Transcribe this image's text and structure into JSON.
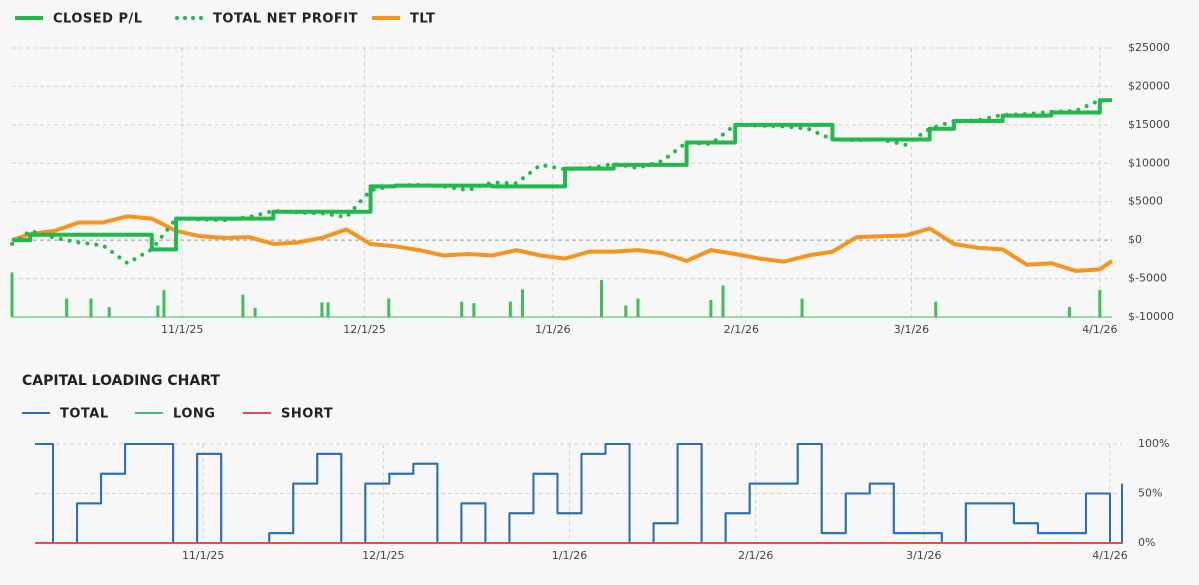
{
  "chart_data": [
    {
      "type": "line",
      "x": [
        "10/4/25",
        "10/7/25",
        "10/11/25",
        "10/15/25",
        "10/19/25",
        "10/23/25",
        "10/27/25",
        "10/31/25",
        "11/4/25",
        "11/8/25",
        "11/12/25",
        "11/16/25",
        "11/20/25",
        "11/24/25",
        "11/28/25",
        "12/2/25",
        "12/6/25",
        "12/10/25",
        "12/14/25",
        "12/18/25",
        "12/22/25",
        "12/26/25",
        "12/30/25",
        "1/3/26",
        "1/7/26",
        "1/11/26",
        "1/15/26",
        "1/19/26",
        "1/23/26",
        "1/27/26",
        "1/31/26",
        "2/4/26",
        "2/8/26",
        "2/12/26",
        "2/16/26",
        "2/20/26",
        "2/24/26",
        "2/28/26",
        "3/4/26",
        "3/8/26",
        "3/12/26",
        "3/16/26",
        "3/20/26",
        "3/24/26",
        "3/28/26",
        "4/1/26",
        "4/3/26"
      ],
      "series": [
        {
          "name": "CLOSED P/L",
          "color": "#22b84c",
          "style": "step",
          "values": [
            0,
            700,
            700,
            700,
            700,
            700,
            -1200,
            2800,
            2800,
            2800,
            2800,
            3700,
            3700,
            3700,
            3700,
            7000,
            7100,
            7100,
            7100,
            7100,
            7000,
            7000,
            7000,
            9300,
            9300,
            9800,
            9800,
            9800,
            12700,
            12700,
            15000,
            15000,
            15000,
            15000,
            13100,
            13100,
            13100,
            13100,
            14500,
            15500,
            15500,
            16200,
            16200,
            16600,
            16600,
            18200,
            18200
          ]
        },
        {
          "name": "TOTAL NET PROFIT",
          "color": "#22b84c",
          "style": "dotted",
          "values": [
            -500,
            1200,
            300,
            -300,
            -700,
            -3000,
            -1200,
            2800,
            2700,
            2600,
            3000,
            3800,
            3600,
            3500,
            3000,
            6500,
            7100,
            7200,
            7000,
            6500,
            7500,
            7400,
            9800,
            9200,
            9400,
            9900,
            9400,
            10300,
            12700,
            12500,
            15000,
            14900,
            14800,
            14500,
            13100,
            13000,
            13100,
            12400,
            14500,
            15500,
            15600,
            16300,
            16400,
            16700,
            16800,
            18200,
            18100
          ]
        },
        {
          "name": "TLT",
          "color": "#f7941d",
          "style": "line",
          "values": [
            0,
            800,
            1200,
            2300,
            2300,
            3100,
            2800,
            1200,
            500,
            300,
            400,
            -500,
            -300,
            300,
            1400,
            -500,
            -800,
            -1300,
            -2000,
            -1800,
            -2000,
            -1300,
            -2000,
            -2400,
            -1500,
            -1500,
            -1300,
            -1700,
            -2700,
            -1300,
            -1800,
            -2400,
            -2800,
            -2000,
            -1500,
            400,
            500,
            600,
            1500,
            -500,
            -1000,
            -1200,
            -3200,
            -3000,
            -4000,
            -3800,
            -2700
          ]
        }
      ],
      "bars": {
        "color": "#3cc05a",
        "x": [
          "10/4/25",
          "10/13/25",
          "10/17/25",
          "10/20/25",
          "10/28/25",
          "10/29/25",
          "11/11/25",
          "11/13/25",
          "11/24/25",
          "11/25/25",
          "12/5/25",
          "12/17/25",
          "12/19/25",
          "12/25/25",
          "12/27/25",
          "1/9/26",
          "1/13/26",
          "1/15/26",
          "1/27/26",
          "1/29/26",
          "2/11/26",
          "3/5/26",
          "3/27/26",
          "4/1/26"
        ],
        "values": [
          -4200,
          -7600,
          -7600,
          -8700,
          -8500,
          -6500,
          -7100,
          -8800,
          -8100,
          -8100,
          -7600,
          -8000,
          -8200,
          -8000,
          -6400,
          -5200,
          -8500,
          -7600,
          -7800,
          -5900,
          -7600,
          -8000,
          -8700,
          -6500
        ]
      },
      "xlim": [
        "10/4/25",
        "4/3/26"
      ],
      "xticks": [
        "11/1/25",
        "12/1/25",
        "1/1/26",
        "2/1/26",
        "3/1/26",
        "4/1/26"
      ],
      "ylim": [
        -10000,
        25000
      ],
      "yticks": [
        {
          "value": -10000,
          "label": "$-10000"
        },
        {
          "value": -5000,
          "label": "$-5000"
        },
        {
          "value": 0,
          "label": "$0"
        },
        {
          "value": 5000,
          "label": "$5000"
        },
        {
          "value": 10000,
          "label": "$10000"
        },
        {
          "value": 15000,
          "label": "$15000"
        },
        {
          "value": 20000,
          "label": "$20000"
        },
        {
          "value": 25000,
          "label": "$25000"
        }
      ],
      "grid": true
    },
    {
      "type": "line",
      "title": "CAPITAL LOADING CHART",
      "x": [
        "10/4/25",
        "10/7/25",
        "10/11/25",
        "10/15/25",
        "10/19/25",
        "10/23/25",
        "10/27/25",
        "10/31/25",
        "11/4/25",
        "11/8/25",
        "11/12/25",
        "11/16/25",
        "11/20/25",
        "11/24/25",
        "11/28/25",
        "12/2/25",
        "12/6/25",
        "12/10/25",
        "12/14/25",
        "12/18/25",
        "12/22/25",
        "12/26/25",
        "12/30/25",
        "1/3/26",
        "1/7/26",
        "1/11/26",
        "1/15/26",
        "1/19/26",
        "1/23/26",
        "1/27/26",
        "1/31/26",
        "2/4/26",
        "2/8/26",
        "2/12/26",
        "2/16/26",
        "2/20/26",
        "2/24/26",
        "2/28/26",
        "3/4/26",
        "3/8/26",
        "3/12/26",
        "3/16/26",
        "3/20/26",
        "3/24/26",
        "3/28/26",
        "4/1/26",
        "4/3/26"
      ],
      "series": [
        {
          "name": "TOTAL",
          "color": "#2a6ebb",
          "style": "step",
          "values": [
            100,
            0,
            40,
            70,
            100,
            100,
            0,
            90,
            0,
            0,
            10,
            60,
            90,
            0,
            60,
            70,
            80,
            0,
            40,
            0,
            30,
            70,
            30,
            90,
            100,
            0,
            20,
            100,
            0,
            30,
            60,
            60,
            100,
            10,
            50,
            60,
            10,
            10,
            0,
            40,
            40,
            20,
            10,
            10,
            50,
            0,
            60
          ]
        },
        {
          "name": "LONG",
          "color": "#45b87a",
          "style": "step",
          "values": [
            100,
            0,
            40,
            70,
            100,
            100,
            0,
            90,
            0,
            0,
            10,
            60,
            90,
            0,
            60,
            70,
            80,
            0,
            40,
            0,
            30,
            70,
            30,
            90,
            100,
            0,
            20,
            100,
            0,
            30,
            60,
            60,
            100,
            10,
            50,
            60,
            10,
            10,
            0,
            40,
            40,
            20,
            10,
            10,
            50,
            0,
            60
          ]
        },
        {
          "name": "SHORT",
          "color": "#e05050",
          "style": "step",
          "values": [
            0,
            0,
            0,
            0,
            0,
            0,
            0,
            0,
            0,
            0,
            0,
            0,
            0,
            0,
            0,
            0,
            0,
            0,
            0,
            0,
            0,
            0,
            0,
            0,
            0,
            0,
            0,
            0,
            0,
            0,
            0,
            0,
            0,
            0,
            0,
            0,
            0,
            0,
            0,
            0,
            0,
            0,
            0,
            0,
            0,
            0,
            0
          ]
        }
      ],
      "xlim": [
        "10/4/25",
        "4/3/26"
      ],
      "xticks": [
        "11/1/25",
        "12/1/25",
        "1/1/26",
        "2/1/26",
        "3/1/26",
        "4/1/26"
      ],
      "ylim": [
        0,
        100
      ],
      "yticks": [
        {
          "value": 0,
          "label": "0%"
        },
        {
          "value": 50,
          "label": "50%"
        },
        {
          "value": 100,
          "label": "100%"
        }
      ],
      "grid": true
    }
  ]
}
